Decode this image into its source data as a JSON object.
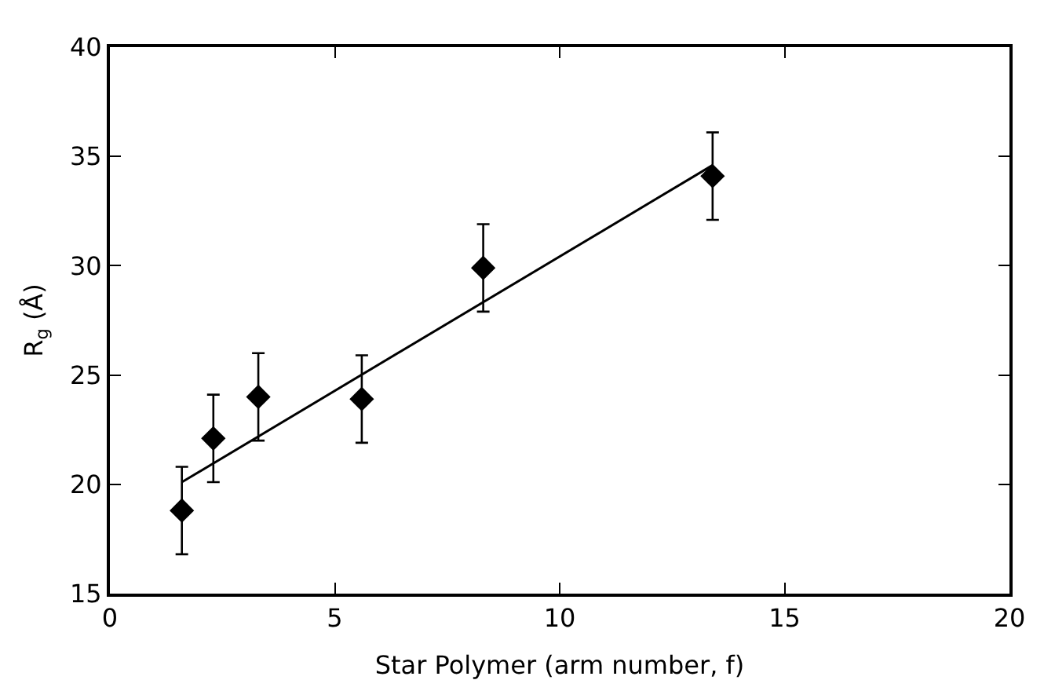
{
  "chart_data": {
    "type": "scatter",
    "xlabel": "Star Polymer (arm number, f)",
    "ylabel": "R$_{g}$ (Å)",
    "xlim": [
      0,
      20
    ],
    "xticks": [
      0,
      5,
      10,
      15,
      20
    ],
    "ylim": [
      15,
      40
    ],
    "yticks": [
      15,
      20,
      25,
      30,
      35,
      40
    ],
    "grid": false,
    "marker": "diamond",
    "series": [
      {
        "type": "scatter",
        "color": "#000000",
        "x": [
          1.6,
          2.3,
          3.3,
          5.6,
          8.3,
          13.4
        ],
        "values": [
          18.8,
          22.1,
          24,
          23.9,
          29.9,
          34.1
        ],
        "errors": [
          2,
          2,
          2,
          2,
          2,
          2
        ]
      },
      {
        "type": "line",
        "color": "#000000",
        "x": [
          1.6,
          13.4
        ],
        "values": [
          20.1,
          34.6
        ],
        "line_style": "solid",
        "marker": "none"
      }
    ]
  }
}
